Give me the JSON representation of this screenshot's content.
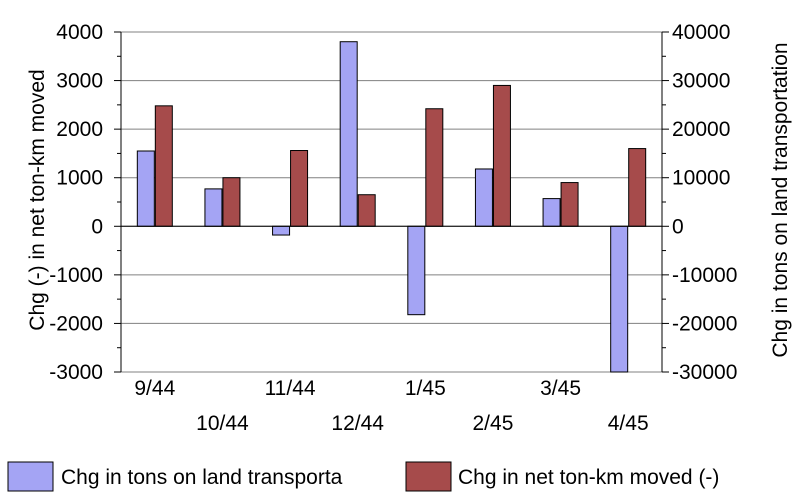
{
  "chart_data": {
    "type": "bar",
    "categories": [
      "9/44",
      "10/44",
      "11/44",
      "12/44",
      "1/45",
      "2/45",
      "3/45",
      "4/45"
    ],
    "series": [
      {
        "name": "Chg in tons on land transporta",
        "axis": "right",
        "color": "#a4a4f4",
        "values": [
          15500,
          7700,
          -1800,
          38000,
          -18200,
          11800,
          5700,
          -30000
        ]
      },
      {
        "name": "Chg in net ton-km moved (-)",
        "axis": "left",
        "color": "#a64b4b",
        "values": [
          2480,
          1000,
          1560,
          650,
          2420,
          2900,
          900,
          1600
        ]
      }
    ],
    "ylabel_left": "Chg (-) in net ton-km moved",
    "ylabel_right": "Chg in tons on land transportation",
    "ylim_left": [
      -3000,
      4000
    ],
    "ylim_right": [
      -30000,
      40000
    ],
    "yticks_left": [
      "4000",
      "3000",
      "2000",
      "1000",
      "0",
      "-1000",
      "-2000",
      "-3000"
    ],
    "yticks_right": [
      "40000",
      "30000",
      "20000",
      "10000",
      "0",
      "-10000",
      "-20000",
      "-30000"
    ],
    "grid": true,
    "legend_position": "bottom"
  }
}
